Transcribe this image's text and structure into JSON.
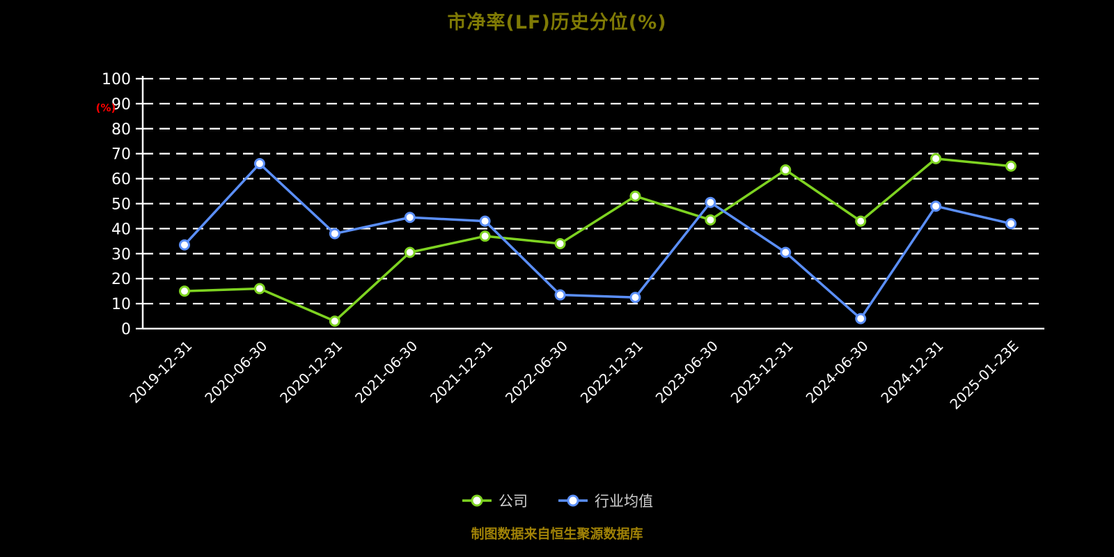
{
  "title": "市净率(LF)历史分位(%)",
  "footer": "制图数据来自恒生聚源数据库",
  "colors": {
    "background": "#000000",
    "title": "#7f7a05",
    "footer": "#a08207",
    "axis": "#ffffff",
    "grid": "#ffffff",
    "unit_label": "#ff0000",
    "legend_text": "#cfcfcf",
    "company": "#7ed321",
    "industry": "#5b8ff9"
  },
  "legend": {
    "items": [
      {
        "label": "公司",
        "color": "#7ed321"
      },
      {
        "label": "行业均值",
        "color": "#5b8ff9"
      }
    ]
  },
  "chart_data": {
    "type": "line",
    "title": "市净率(LF)历史分位(%)",
    "xlabel": "",
    "ylabel": "(%)",
    "ylim": [
      0,
      100
    ],
    "y_ticks": [
      0,
      10,
      20,
      30,
      40,
      50,
      60,
      70,
      80,
      90,
      100
    ],
    "grid": "dashed",
    "legend_position": "bottom",
    "categories": [
      "2019-12-31",
      "2020-06-30",
      "2020-12-31",
      "2021-06-30",
      "2021-12-31",
      "2022-06-30",
      "2022-12-31",
      "2023-06-30",
      "2023-12-31",
      "2024-06-30",
      "2024-12-31",
      "2025-01-23E"
    ],
    "series": [
      {
        "name": "公司",
        "color": "#7ed321",
        "values": [
          15,
          16,
          3,
          30.5,
          37,
          34,
          53,
          43.5,
          63.5,
          43,
          68,
          65
        ]
      },
      {
        "name": "行业均值",
        "color": "#5b8ff9",
        "values": [
          33.5,
          66,
          38,
          44.5,
          43,
          13.5,
          12.5,
          50.5,
          30.5,
          4,
          49,
          42
        ]
      }
    ]
  }
}
